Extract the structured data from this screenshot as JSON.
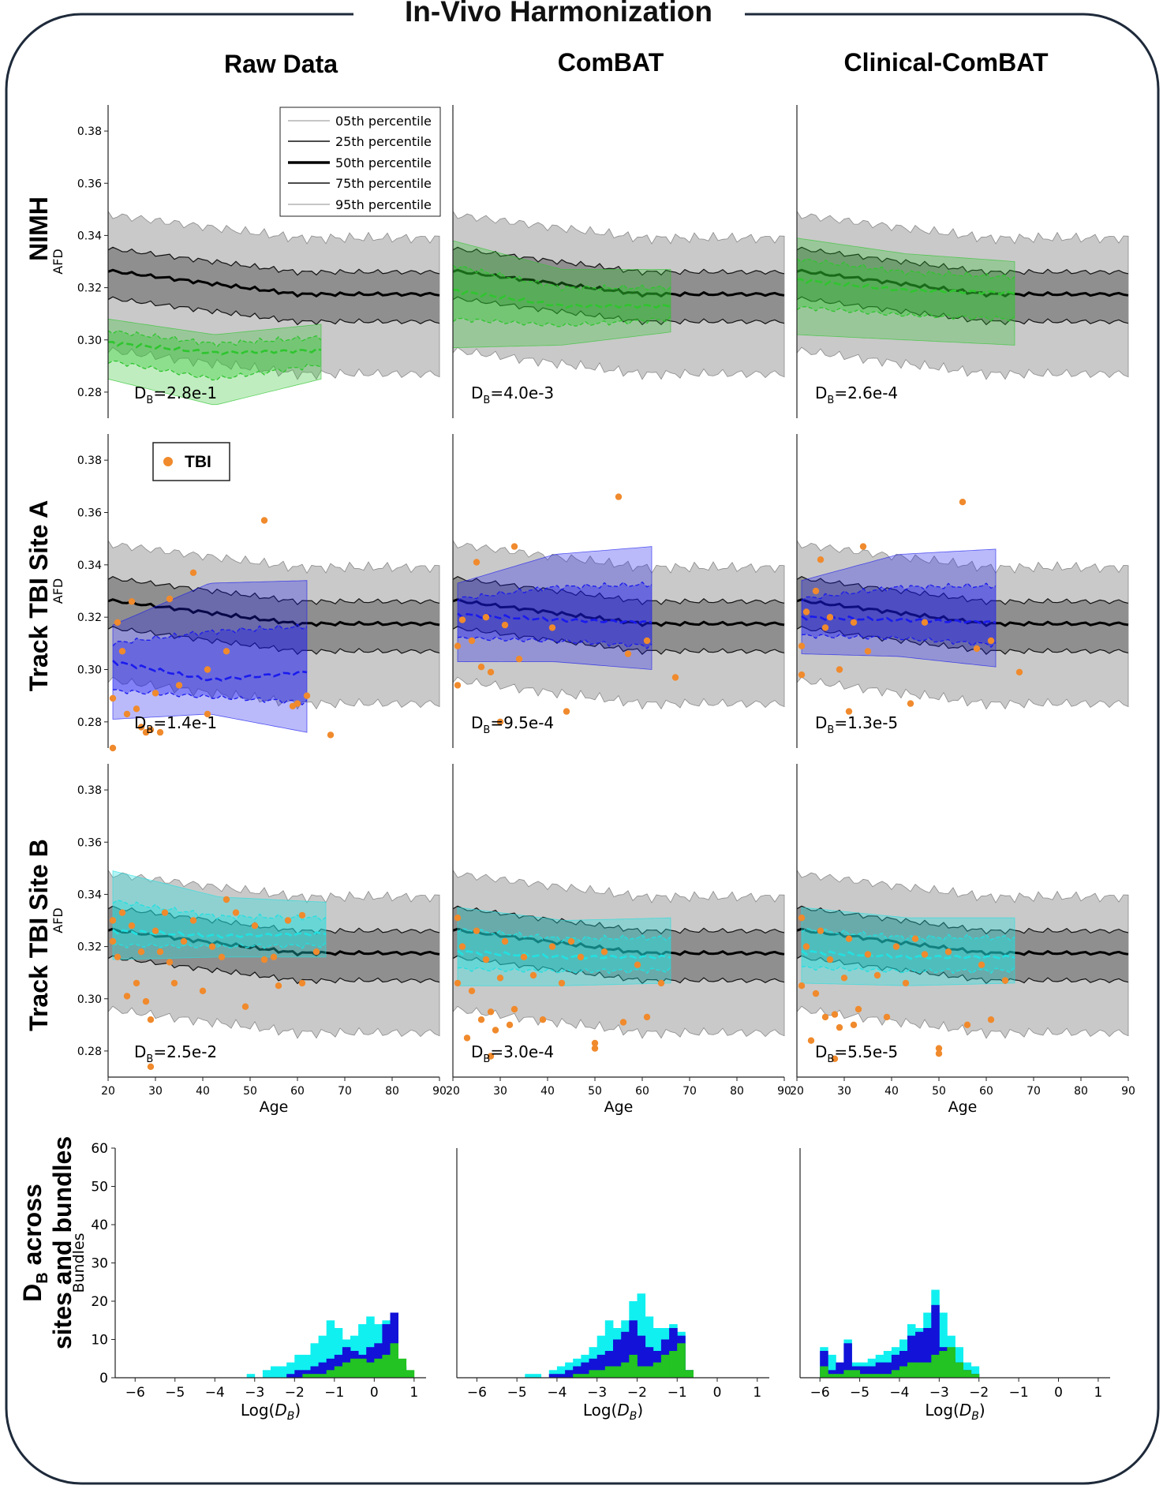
{
  "title": "In-Vivo Harmonization",
  "columns": [
    "Raw Data",
    "ComBAT",
    "Clinical-ComBAT"
  ],
  "rows": [
    "NIMH",
    "Track TBI Site A",
    "Track TBI Site B"
  ],
  "hist_row_label": {
    "line1_sym": "D",
    "line1_sub": "B",
    "line1_rest": " across",
    "line2": "sites and bundles"
  },
  "axis": {
    "ylabel": "AFD",
    "xlabel": "Age",
    "hist_ylabel": "Bundles",
    "hist_xlabel_pre": "Log(",
    "hist_xlabel_sym": "D",
    "hist_xlabel_sub": "B",
    "hist_xlabel_post": ")"
  },
  "ticks": {
    "afd": [
      "0.28",
      "0.30",
      "0.32",
      "0.34",
      "0.36",
      "0.38"
    ],
    "age_first": [
      "20",
      "30",
      "40",
      "50",
      "60",
      "70",
      "80",
      "90"
    ],
    "age_mid": [
      "20",
      "30",
      "40",
      "50",
      "60",
      "70",
      "80",
      "90"
    ],
    "age_last": [
      "20",
      "30",
      "40",
      "50",
      "60",
      "70",
      "80",
      "90"
    ],
    "hist_y": [
      "0",
      "10",
      "20",
      "30",
      "40",
      "50",
      "60"
    ],
    "hist_x": [
      "−6",
      "−5",
      "−4",
      "−3",
      "−2",
      "−1",
      "0",
      "1"
    ]
  },
  "legend_percentiles": [
    "05th percentile",
    "25th percentile",
    "50th percentile",
    "75th percentile",
    "95th percentile"
  ],
  "legend_tbi": "TBI",
  "db_values": {
    "r0": [
      "=2.8e-1",
      "=4.0e-3",
      "=2.6e-4"
    ],
    "r1": [
      "=1.4e-1",
      "=9.5e-4",
      "=1.3e-5"
    ],
    "r2": [
      "=2.5e-2",
      "=3.0e-4",
      "=5.5e-5"
    ]
  },
  "colors": {
    "nimh": "#2fc52f",
    "siteA": "#1a1aee",
    "siteB": "#22e0e0",
    "tbi": "#f08a2c",
    "hist_green": "#22c322",
    "hist_blue": "#1212d8",
    "hist_cyan": "#11f0f0"
  },
  "chart_data": [
    {
      "type": "area",
      "title": "NIMH — Raw Data",
      "xlabel": "Age",
      "ylabel": "AFD",
      "xlim": [
        20,
        90
      ],
      "ylim": [
        0.27,
        0.39
      ],
      "site_band": {
        "age_range": [
          20,
          65
        ],
        "p05": [
          0.285,
          0.275,
          0.285
        ],
        "p50": [
          0.299,
          0.295,
          0.296
        ],
        "p95": [
          0.308,
          0.302,
          0.306
        ]
      },
      "db": "2.8e-1"
    },
    {
      "type": "area",
      "title": "NIMH — ComBAT",
      "xlim": [
        20,
        90
      ],
      "ylim": [
        0.27,
        0.39
      ],
      "site_band": {
        "age_range": [
          20,
          66
        ],
        "p05": [
          0.297,
          0.298,
          0.303
        ],
        "p50": [
          0.319,
          0.313,
          0.313
        ],
        "p95": [
          0.338,
          0.327,
          0.327
        ]
      },
      "db": "4.0e-3"
    },
    {
      "type": "area",
      "title": "NIMH — Clinical-ComBAT",
      "xlim": [
        20,
        90
      ],
      "ylim": [
        0.27,
        0.39
      ],
      "site_band": {
        "age_range": [
          20,
          66
        ],
        "p05": [
          0.302,
          0.3,
          0.298
        ],
        "p50": [
          0.323,
          0.319,
          0.318
        ],
        "p95": [
          0.339,
          0.333,
          0.33
        ]
      },
      "db": "2.6e-4"
    },
    {
      "type": "scatter",
      "title": "Track TBI Site A — Raw Data",
      "xlim": [
        20,
        90
      ],
      "ylim": [
        0.27,
        0.39
      ],
      "site_band": {
        "age_range": [
          21,
          62
        ],
        "p05": [
          0.281,
          0.283,
          0.276
        ],
        "p50": [
          0.303,
          0.296,
          0.299
        ],
        "p95": [
          0.317,
          0.333,
          0.334
        ]
      },
      "tbi_points": [
        [
          21,
          0.289
        ],
        [
          21,
          0.27
        ],
        [
          22,
          0.318
        ],
        [
          23,
          0.307
        ],
        [
          24,
          0.283
        ],
        [
          25,
          0.326
        ],
        [
          26,
          0.285
        ],
        [
          27,
          0.278
        ],
        [
          28,
          0.276
        ],
        [
          29,
          0.277
        ],
        [
          30,
          0.291
        ],
        [
          31,
          0.276
        ],
        [
          33,
          0.327
        ],
        [
          35,
          0.294
        ],
        [
          38,
          0.337
        ],
        [
          41,
          0.3
        ],
        [
          41,
          0.283
        ],
        [
          45,
          0.307
        ],
        [
          53,
          0.357
        ],
        [
          59,
          0.286
        ],
        [
          60,
          0.287
        ],
        [
          62,
          0.29
        ],
        [
          67,
          0.275
        ]
      ],
      "db": "1.4e-1"
    },
    {
      "type": "scatter",
      "title": "Track TBI Site A — ComBAT",
      "xlim": [
        20,
        90
      ],
      "ylim": [
        0.27,
        0.39
      ],
      "site_band": {
        "age_range": [
          21,
          62
        ],
        "p05": [
          0.303,
          0.303,
          0.3
        ],
        "p50": [
          0.321,
          0.319,
          0.318
        ],
        "p95": [
          0.333,
          0.344,
          0.347
        ]
      },
      "tbi_points": [
        [
          21,
          0.309
        ],
        [
          21,
          0.294
        ],
        [
          22,
          0.319
        ],
        [
          24,
          0.311
        ],
        [
          25,
          0.341
        ],
        [
          26,
          0.301
        ],
        [
          27,
          0.32
        ],
        [
          28,
          0.299
        ],
        [
          30,
          0.28
        ],
        [
          31,
          0.317
        ],
        [
          33,
          0.347
        ],
        [
          34,
          0.304
        ],
        [
          41,
          0.316
        ],
        [
          44,
          0.284
        ],
        [
          55,
          0.366
        ],
        [
          57,
          0.306
        ],
        [
          61,
          0.311
        ],
        [
          67,
          0.297
        ]
      ],
      "db": "9.5e-4"
    },
    {
      "type": "scatter",
      "title": "Track TBI Site A — Clinical-ComBAT",
      "xlim": [
        20,
        90
      ],
      "ylim": [
        0.27,
        0.39
      ],
      "site_band": {
        "age_range": [
          21,
          62
        ],
        "p05": [
          0.306,
          0.305,
          0.301
        ],
        "p50": [
          0.32,
          0.319,
          0.318
        ],
        "p95": [
          0.334,
          0.344,
          0.346
        ]
      },
      "tbi_points": [
        [
          21,
          0.309
        ],
        [
          21,
          0.298
        ],
        [
          22,
          0.322
        ],
        [
          24,
          0.33
        ],
        [
          25,
          0.342
        ],
        [
          26,
          0.316
        ],
        [
          27,
          0.32
        ],
        [
          29,
          0.3
        ],
        [
          31,
          0.284
        ],
        [
          32,
          0.318
        ],
        [
          34,
          0.347
        ],
        [
          35,
          0.307
        ],
        [
          44,
          0.287
        ],
        [
          47,
          0.318
        ],
        [
          55,
          0.364
        ],
        [
          58,
          0.308
        ],
        [
          61,
          0.311
        ],
        [
          67,
          0.299
        ]
      ],
      "db": "1.3e-5"
    },
    {
      "type": "scatter",
      "title": "Track TBI Site B — Raw Data",
      "xlim": [
        20,
        90
      ],
      "ylim": [
        0.27,
        0.39
      ],
      "site_band": {
        "age_range": [
          21,
          66
        ],
        "p05": [
          0.315,
          0.316,
          0.316
        ],
        "p50": [
          0.326,
          0.324,
          0.325
        ],
        "p95": [
          0.349,
          0.339,
          0.337
        ]
      },
      "tbi_points": [
        [
          21,
          0.33
        ],
        [
          21,
          0.322
        ],
        [
          22,
          0.316
        ],
        [
          23,
          0.333
        ],
        [
          24,
          0.301
        ],
        [
          25,
          0.328
        ],
        [
          26,
          0.306
        ],
        [
          27,
          0.318
        ],
        [
          28,
          0.299
        ],
        [
          29,
          0.292
        ],
        [
          29,
          0.274
        ],
        [
          30,
          0.326
        ],
        [
          31,
          0.318
        ],
        [
          32,
          0.333
        ],
        [
          33,
          0.314
        ],
        [
          34,
          0.306
        ],
        [
          36,
          0.322
        ],
        [
          38,
          0.33
        ],
        [
          40,
          0.303
        ],
        [
          42,
          0.32
        ],
        [
          44,
          0.316
        ],
        [
          45,
          0.338
        ],
        [
          47,
          0.333
        ],
        [
          49,
          0.297
        ],
        [
          51,
          0.328
        ],
        [
          53,
          0.315
        ],
        [
          55,
          0.316
        ],
        [
          56,
          0.305
        ],
        [
          58,
          0.33
        ],
        [
          61,
          0.332
        ],
        [
          61,
          0.306
        ],
        [
          64,
          0.318
        ]
      ],
      "db": "2.5e-2"
    },
    {
      "type": "scatter",
      "title": "Track TBI Site B — ComBAT",
      "xlim": [
        20,
        90
      ],
      "ylim": [
        0.27,
        0.39
      ],
      "site_band": {
        "age_range": [
          21,
          66
        ],
        "p05": [
          0.305,
          0.305,
          0.306
        ],
        "p50": [
          0.318,
          0.316,
          0.316
        ],
        "p95": [
          0.335,
          0.33,
          0.331
        ]
      },
      "tbi_points": [
        [
          21,
          0.331
        ],
        [
          21,
          0.306
        ],
        [
          22,
          0.32
        ],
        [
          23,
          0.285
        ],
        [
          24,
          0.303
        ],
        [
          25,
          0.326
        ],
        [
          26,
          0.292
        ],
        [
          27,
          0.315
        ],
        [
          28,
          0.295
        ],
        [
          28,
          0.278
        ],
        [
          29,
          0.288
        ],
        [
          30,
          0.308
        ],
        [
          31,
          0.322
        ],
        [
          32,
          0.29
        ],
        [
          33,
          0.296
        ],
        [
          35,
          0.316
        ],
        [
          37,
          0.309
        ],
        [
          39,
          0.292
        ],
        [
          41,
          0.32
        ],
        [
          43,
          0.306
        ],
        [
          45,
          0.322
        ],
        [
          47,
          0.316
        ],
        [
          50,
          0.283
        ],
        [
          50,
          0.281
        ],
        [
          52,
          0.318
        ],
        [
          56,
          0.291
        ],
        [
          59,
          0.313
        ],
        [
          61,
          0.293
        ],
        [
          64,
          0.306
        ]
      ],
      "db": "3.0e-4"
    },
    {
      "type": "scatter",
      "title": "Track TBI Site B — Clinical-ComBAT",
      "xlim": [
        20,
        90
      ],
      "ylim": [
        0.27,
        0.39
      ],
      "site_band": {
        "age_range": [
          21,
          66
        ],
        "p05": [
          0.306,
          0.305,
          0.306
        ],
        "p50": [
          0.318,
          0.316,
          0.316
        ],
        "p95": [
          0.335,
          0.331,
          0.331
        ]
      },
      "tbi_points": [
        [
          21,
          0.331
        ],
        [
          21,
          0.305
        ],
        [
          22,
          0.32
        ],
        [
          23,
          0.284
        ],
        [
          24,
          0.302
        ],
        [
          25,
          0.326
        ],
        [
          26,
          0.293
        ],
        [
          27,
          0.315
        ],
        [
          28,
          0.294
        ],
        [
          28,
          0.277
        ],
        [
          29,
          0.289
        ],
        [
          30,
          0.308
        ],
        [
          31,
          0.323
        ],
        [
          32,
          0.29
        ],
        [
          33,
          0.296
        ],
        [
          35,
          0.317
        ],
        [
          37,
          0.309
        ],
        [
          39,
          0.293
        ],
        [
          41,
          0.32
        ],
        [
          43,
          0.306
        ],
        [
          45,
          0.323
        ],
        [
          47,
          0.317
        ],
        [
          50,
          0.281
        ],
        [
          50,
          0.279
        ],
        [
          52,
          0.318
        ],
        [
          56,
          0.29
        ],
        [
          59,
          0.313
        ],
        [
          61,
          0.292
        ],
        [
          64,
          0.307
        ]
      ],
      "db": "5.5e-5"
    },
    {
      "type": "bar",
      "title": "D_B histogram — Raw Data",
      "xlabel": "Log(D_B)",
      "ylabel": "Bundles",
      "xlim": [
        -6.5,
        1.3
      ],
      "ylim": [
        0,
        60
      ],
      "bins_start": -3.2,
      "bin_width": 0.2,
      "green": [
        0,
        0,
        0,
        0,
        0,
        0,
        0,
        1,
        1,
        1,
        2,
        3,
        4,
        5,
        5,
        4,
        5,
        6,
        9,
        5,
        2,
        0
      ],
      "blue": [
        0,
        0,
        0,
        0,
        0,
        1,
        2,
        2,
        3,
        4,
        5,
        6,
        8,
        7,
        6,
        8,
        9,
        14,
        17,
        3
      ],
      "cyan": [
        1,
        0,
        2,
        3,
        3,
        4,
        6,
        6,
        9,
        11,
        15,
        13,
        10,
        11,
        14,
        16,
        14,
        15,
        16,
        3
      ]
    },
    {
      "type": "bar",
      "title": "D_B histogram — ComBAT",
      "xlabel": "Log(D_B)",
      "ylabel": "Bundles",
      "xlim": [
        -6.5,
        1.3
      ],
      "ylim": [
        0,
        60
      ],
      "bins_start": -4.8,
      "bin_width": 0.2,
      "green": [
        0,
        0,
        0,
        0,
        0,
        0,
        1,
        1,
        2,
        2,
        3,
        3,
        4,
        6,
        3,
        3,
        4,
        6,
        7,
        9,
        2
      ],
      "blue": [
        0,
        0,
        0,
        1,
        1,
        2,
        3,
        4,
        5,
        6,
        7,
        10,
        12,
        15,
        11,
        8,
        7,
        10,
        13,
        11,
        2
      ],
      "cyan": [
        1,
        1,
        0,
        2,
        3,
        4,
        5,
        6,
        8,
        11,
        15,
        13,
        15,
        20,
        22,
        16,
        13,
        13,
        14,
        12,
        2
      ]
    },
    {
      "type": "bar",
      "title": "D_B histogram — Clinical-ComBAT",
      "xlabel": "Log(D_B)",
      "ylabel": "Bundles",
      "xlim": [
        -6.5,
        1.3
      ],
      "ylim": [
        0,
        60
      ],
      "bins_start": -6.0,
      "bin_width": 0.2,
      "green": [
        3,
        1,
        1,
        2,
        2,
        1,
        1,
        1,
        1,
        2,
        3,
        4,
        4,
        4,
        6,
        7,
        8,
        4,
        2,
        1,
        0
      ],
      "blue": [
        7,
        2,
        4,
        9,
        3,
        3,
        3,
        4,
        4,
        6,
        7,
        11,
        12,
        13,
        19,
        8,
        5,
        4,
        2,
        1,
        0
      ],
      "cyan": [
        8,
        6,
        2,
        10,
        4,
        4,
        5,
        6,
        7,
        8,
        10,
        14,
        13,
        17,
        23,
        17,
        11,
        8,
        4,
        3,
        0
      ]
    }
  ]
}
